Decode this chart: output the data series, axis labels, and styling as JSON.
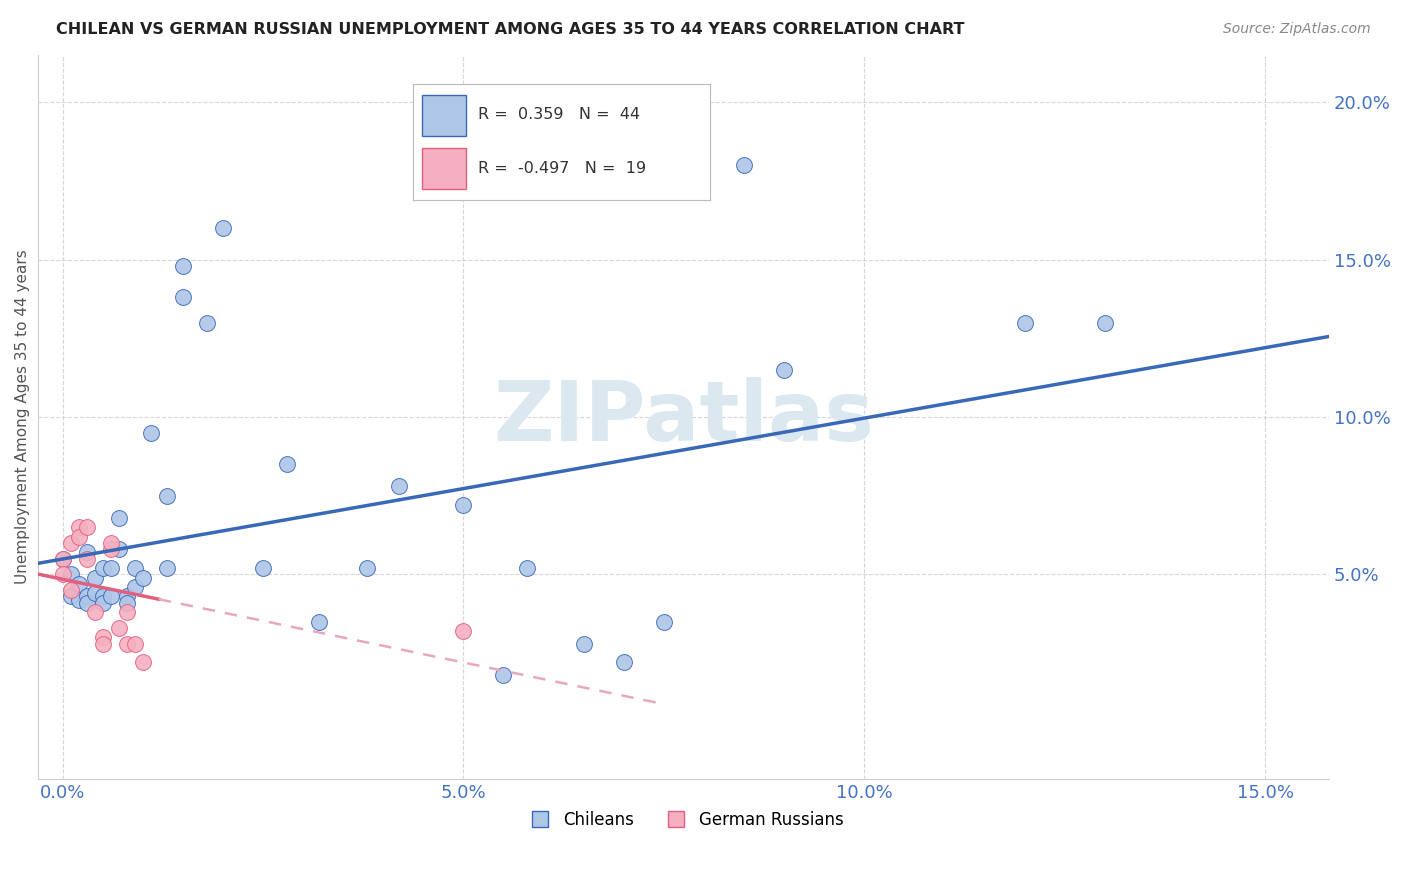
{
  "title": "CHILEAN VS GERMAN RUSSIAN UNEMPLOYMENT AMONG AGES 35 TO 44 YEARS CORRELATION CHART",
  "source": "Source: ZipAtlas.com",
  "ylabel": "Unemployment Among Ages 35 to 44 years",
  "xlim": [
    -0.003,
    0.158
  ],
  "ylim": [
    -0.015,
    0.215
  ],
  "legend_chileans": "Chileans",
  "legend_german_russians": "German Russians",
  "r_chileans": "0.359",
  "n_chileans": "44",
  "r_german_russians": "-0.497",
  "n_german_russians": "19",
  "color_chileans": "#aec6e8",
  "color_german_russians": "#f5afc0",
  "trendline_chilean_color": "#3a68b8",
  "trendline_german_russian_color": "#e06080",
  "trendline_german_russian_dashed_color": "#e8a8bc",
  "watermark_color": "#dce8f0",
  "background_color": "#ffffff",
  "grid_color": "#cccccc",
  "chileans_x": [
    0.0,
    0.001,
    0.001,
    0.002,
    0.002,
    0.003,
    0.003,
    0.003,
    0.004,
    0.004,
    0.005,
    0.005,
    0.005,
    0.006,
    0.006,
    0.007,
    0.007,
    0.008,
    0.008,
    0.009,
    0.009,
    0.01,
    0.011,
    0.013,
    0.013,
    0.015,
    0.015,
    0.018,
    0.02,
    0.025,
    0.028,
    0.032,
    0.038,
    0.042,
    0.05,
    0.055,
    0.058,
    0.065,
    0.07,
    0.075,
    0.085,
    0.09,
    0.12,
    0.13
  ],
  "chileans_y": [
    0.055,
    0.05,
    0.043,
    0.047,
    0.042,
    0.057,
    0.043,
    0.041,
    0.049,
    0.044,
    0.043,
    0.052,
    0.041,
    0.052,
    0.043,
    0.068,
    0.058,
    0.043,
    0.041,
    0.052,
    0.046,
    0.049,
    0.095,
    0.075,
    0.052,
    0.148,
    0.138,
    0.13,
    0.16,
    0.052,
    0.085,
    0.035,
    0.052,
    0.078,
    0.072,
    0.018,
    0.052,
    0.028,
    0.022,
    0.035,
    0.18,
    0.115,
    0.13,
    0.13
  ],
  "german_russians_x": [
    0.0,
    0.0,
    0.001,
    0.001,
    0.002,
    0.002,
    0.003,
    0.003,
    0.004,
    0.005,
    0.005,
    0.006,
    0.006,
    0.007,
    0.008,
    0.008,
    0.009,
    0.01,
    0.05
  ],
  "german_russians_y": [
    0.055,
    0.05,
    0.06,
    0.045,
    0.065,
    0.062,
    0.065,
    0.055,
    0.038,
    0.03,
    0.028,
    0.058,
    0.06,
    0.033,
    0.038,
    0.028,
    0.028,
    0.022,
    0.032
  ],
  "x_ticks": [
    0.0,
    0.05,
    0.1,
    0.15
  ],
  "x_tick_labels": [
    "0.0%",
    "5.0%",
    "10.0%",
    "15.0%"
  ],
  "y_ticks": [
    0.05,
    0.1,
    0.15,
    0.2
  ],
  "y_tick_labels": [
    "5.0%",
    "10.0%",
    "15.0%",
    "20.0%"
  ],
  "tick_color": "#4472c4",
  "german_russian_trendline_solid_end": 0.012,
  "german_russian_trendline_dashed_end": 0.075
}
